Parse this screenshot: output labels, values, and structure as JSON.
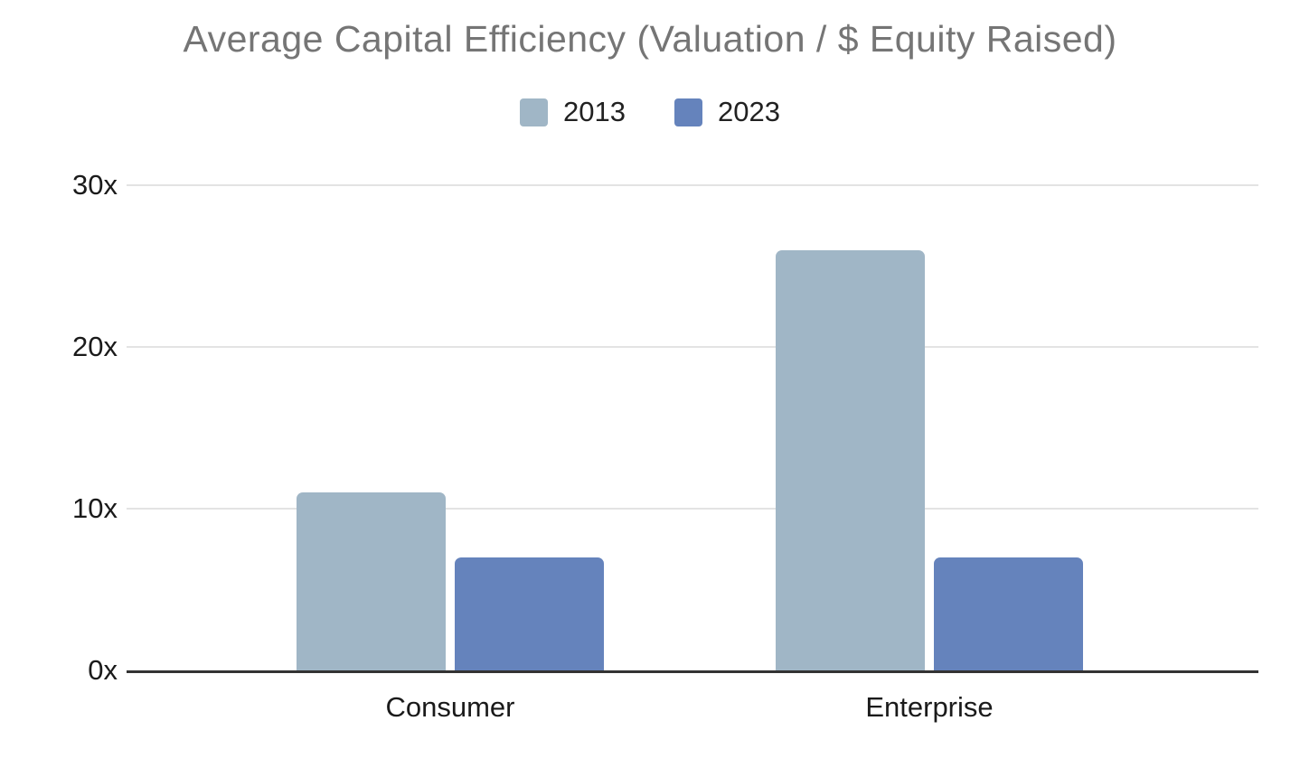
{
  "title": "Average Capital Efficiency (Valuation / $ Equity Raised)",
  "chart_data": {
    "type": "bar",
    "title": "Average Capital Efficiency (Valuation / $ Equity Raised)",
    "categories": [
      "Consumer",
      "Enterprise"
    ],
    "series": [
      {
        "name": "2013",
        "color": "#a0b6c6",
        "values": [
          11,
          26
        ]
      },
      {
        "name": "2023",
        "color": "#6583bc",
        "values": [
          7,
          7
        ]
      }
    ],
    "xlabel": "",
    "ylabel": "",
    "ylim": [
      0,
      30
    ],
    "yticks": [
      {
        "value": 0,
        "label": "0x"
      },
      {
        "value": 10,
        "label": "10x"
      },
      {
        "value": 20,
        "label": "20x"
      },
      {
        "value": 30,
        "label": "30x"
      }
    ],
    "grid": true,
    "legend_position": "top",
    "colors": {
      "title_text": "#757575",
      "axis_text": "#1a1a1a",
      "gridline": "#e3e3e3",
      "baseline": "#333333",
      "background": "#ffffff"
    }
  }
}
